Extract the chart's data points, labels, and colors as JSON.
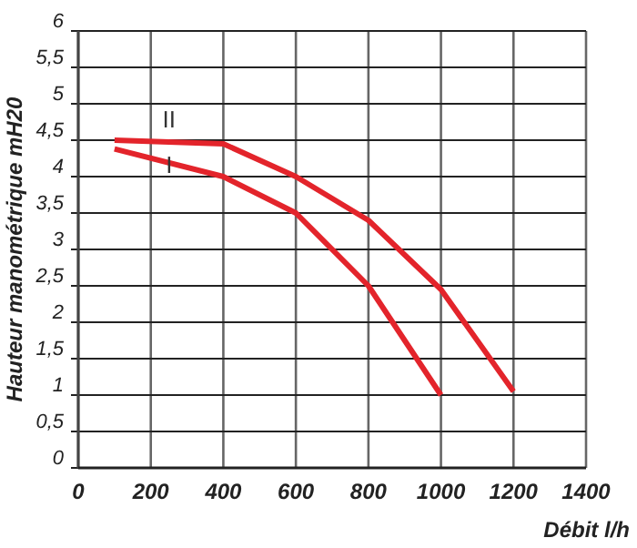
{
  "chart_data": {
    "type": "line",
    "xlabel": "Débit l/h",
    "ylabel": "Hauteur manométrique mH20",
    "xlim": [
      0,
      1400
    ],
    "xticks": [
      0,
      200,
      400,
      600,
      800,
      1000,
      1200,
      1400
    ],
    "ylim": [
      0,
      6
    ],
    "yticks": [
      {
        "value": 0,
        "label": "0"
      },
      {
        "value": 0.5,
        "label": "0,5"
      },
      {
        "value": 1,
        "label": "1"
      },
      {
        "value": 1.5,
        "label": "1,5"
      },
      {
        "value": 2,
        "label": "2"
      },
      {
        "value": 2.5,
        "label": "2,5"
      },
      {
        "value": 3,
        "label": "3"
      },
      {
        "value": 3.5,
        "label": "3,5"
      },
      {
        "value": 4,
        "label": "4"
      },
      {
        "value": 4.5,
        "label": "4,5"
      },
      {
        "value": 5,
        "label": "5"
      },
      {
        "value": 5.5,
        "label": "5,5"
      },
      {
        "value": 6,
        "label": "6"
      }
    ],
    "grid": true,
    "marker": "none",
    "line_style": "solid",
    "series": [
      {
        "name": "I",
        "color": "#e3242b",
        "x": [
          100,
          400,
          600,
          800,
          1000
        ],
        "values": [
          4.38,
          4.0,
          3.5,
          2.5,
          1.0
        ]
      },
      {
        "name": "II",
        "color": "#e3242b",
        "x": [
          100,
          400,
          600,
          800,
          1000,
          1200
        ],
        "values": [
          4.5,
          4.45,
          4.0,
          3.4,
          2.45,
          1.05
        ]
      }
    ]
  }
}
